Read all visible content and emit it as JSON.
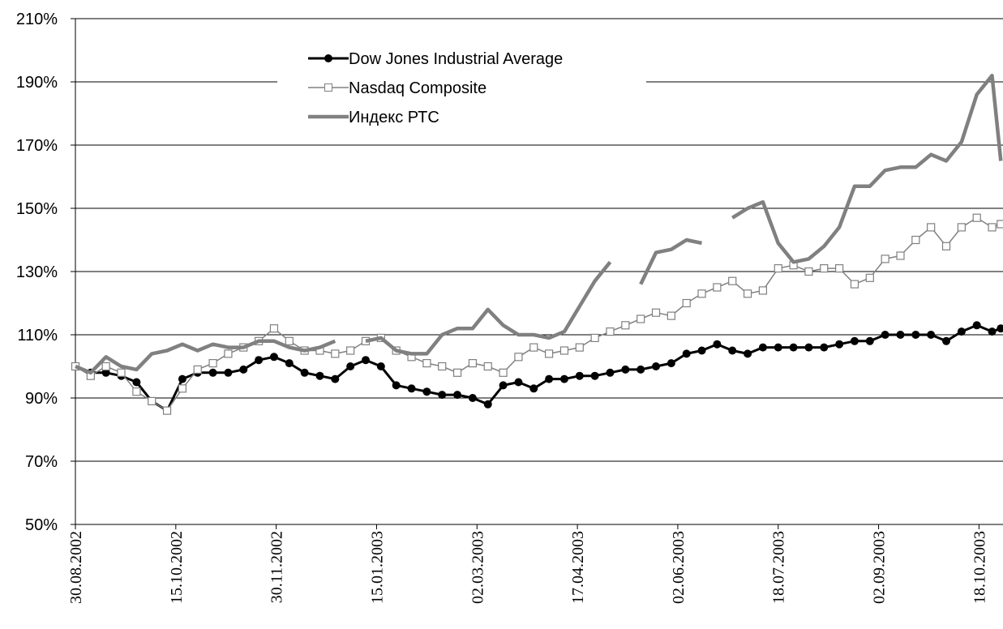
{
  "chart_data": {
    "type": "line",
    "x": [
      "30.08.2002",
      "06.09.2002",
      "13.09.2002",
      "20.09.2002",
      "27.09.2002",
      "04.10.2002",
      "11.10.2002",
      "18.10.2002",
      "25.10.2002",
      "01.11.2002",
      "08.11.2002",
      "15.11.2002",
      "22.11.2002",
      "29.11.2002",
      "06.12.2002",
      "13.12.2002",
      "20.12.2002",
      "27.12.2002",
      "03.01.2003",
      "10.01.2003",
      "17.01.2003",
      "24.01.2003",
      "31.01.2003",
      "07.02.2003",
      "14.02.2003",
      "21.02.2003",
      "28.02.2003",
      "07.03.2003",
      "14.03.2003",
      "21.03.2003",
      "28.03.2003",
      "04.04.2003",
      "11.04.2003",
      "18.04.2003",
      "25.04.2003",
      "02.05.2003",
      "09.05.2003",
      "16.05.2003",
      "23.05.2003",
      "30.05.2003",
      "06.06.2003",
      "13.06.2003",
      "20.06.2003",
      "27.06.2003",
      "04.07.2003",
      "11.07.2003",
      "18.07.2003",
      "25.07.2003",
      "01.08.2003",
      "08.08.2003",
      "15.08.2003",
      "22.08.2003",
      "29.08.2003",
      "05.09.2003",
      "12.09.2003",
      "19.09.2003",
      "26.09.2003",
      "03.10.2003",
      "10.10.2003",
      "17.10.2003",
      "24.10.2003",
      "28.10.2003"
    ],
    "series": [
      {
        "name": "Dow Jones Industrial Average",
        "color": "#000000",
        "marker": "circle",
        "values": [
          100,
          98,
          98,
          97,
          95,
          89,
          86,
          96,
          98,
          98,
          98,
          99,
          102,
          103,
          101,
          98,
          97,
          96,
          100,
          102,
          100,
          94,
          93,
          92,
          91,
          91,
          90,
          88,
          94,
          95,
          93,
          96,
          96,
          97,
          97,
          98,
          99,
          99,
          100,
          101,
          104,
          105,
          107,
          105,
          104,
          106,
          106,
          106,
          106,
          106,
          107,
          108,
          108,
          110,
          110,
          110,
          110,
          108,
          111,
          113,
          111,
          112
        ]
      },
      {
        "name": "Nasdaq Composite",
        "color": "#808080",
        "marker": "square",
        "values": [
          100,
          97,
          100,
          98,
          92,
          89,
          86,
          93,
          99,
          101,
          104,
          106,
          108,
          112,
          108,
          105,
          105,
          104,
          105,
          108,
          109,
          105,
          103,
          101,
          100,
          98,
          101,
          100,
          98,
          103,
          106,
          104,
          105,
          106,
          109,
          111,
          113,
          115,
          117,
          116,
          120,
          123,
          125,
          127,
          123,
          124,
          131,
          132,
          130,
          131,
          131,
          126,
          128,
          134,
          135,
          140,
          144,
          138,
          144,
          147,
          144,
          145
        ]
      },
      {
        "name": "Индекс РТС",
        "color": "#808080",
        "marker": "none",
        "values": [
          100,
          98,
          103,
          100,
          99,
          104,
          105,
          107,
          105,
          107,
          106,
          106,
          108,
          108,
          106,
          105,
          106,
          108,
          null,
          108,
          109,
          105,
          104,
          104,
          110,
          112,
          112,
          118,
          113,
          110,
          110,
          109,
          111,
          119,
          127,
          133,
          null,
          126,
          136,
          137,
          140,
          139,
          null,
          147,
          150,
          152,
          139,
          133,
          134,
          138,
          144,
          157,
          157,
          162,
          163,
          163,
          167,
          165,
          171,
          186,
          192,
          165
        ]
      }
    ],
    "xlim": [
      "30.08.2002",
      "29.10.2003"
    ],
    "xticks": [
      "30.08.2002",
      "15.10.2002",
      "30.11.2002",
      "15.01.2003",
      "02.03.2003",
      "17.04.2003",
      "02.06.2003",
      "18.07.2003",
      "02.09.2003",
      "18.10.2003"
    ],
    "ylim": [
      50,
      210
    ],
    "yticks": [
      {
        "value": 50,
        "label": "50%"
      },
      {
        "value": 70,
        "label": "70%"
      },
      {
        "value": 90,
        "label": "90%"
      },
      {
        "value": 110,
        "label": "110%"
      },
      {
        "value": 130,
        "label": "130%"
      },
      {
        "value": 150,
        "label": "150%"
      },
      {
        "value": 170,
        "label": "170%"
      },
      {
        "value": 190,
        "label": "190%"
      },
      {
        "value": 210,
        "label": "210%"
      }
    ],
    "grid": true,
    "legend": "top"
  }
}
